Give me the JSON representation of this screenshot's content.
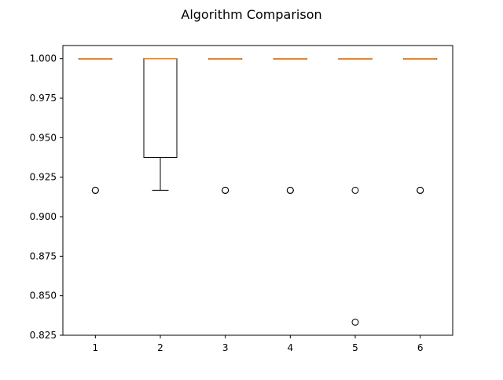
{
  "chart_data": {
    "type": "box",
    "title": "Algorithm Comparison",
    "xlabel": "",
    "ylabel": "",
    "ylim": [
      0.825,
      1.0083
    ],
    "yticks": [
      0.825,
      0.85,
      0.875,
      0.9,
      0.925,
      0.95,
      0.975,
      1.0
    ],
    "ytick_labels": [
      "0.825",
      "0.850",
      "0.875",
      "0.900",
      "0.925",
      "0.950",
      "0.975",
      "1.000"
    ],
    "categories": [
      "1",
      "2",
      "3",
      "4",
      "5",
      "6"
    ],
    "grid": false,
    "boxes": [
      {
        "category": "1",
        "whisker_low": 1.0,
        "q1": 1.0,
        "median": 1.0,
        "q3": 1.0,
        "whisker_high": 1.0,
        "outliers": [
          0.9167,
          0.9167
        ]
      },
      {
        "category": "2",
        "whisker_low": 0.9167,
        "q1": 0.9375,
        "median": 1.0,
        "q3": 1.0,
        "whisker_high": 1.0,
        "outliers": []
      },
      {
        "category": "3",
        "whisker_low": 1.0,
        "q1": 1.0,
        "median": 1.0,
        "q3": 1.0,
        "whisker_high": 1.0,
        "outliers": [
          0.9167,
          0.9167
        ]
      },
      {
        "category": "4",
        "whisker_low": 1.0,
        "q1": 1.0,
        "median": 1.0,
        "q3": 1.0,
        "whisker_high": 1.0,
        "outliers": [
          0.9167,
          0.9167
        ]
      },
      {
        "category": "5",
        "whisker_low": 1.0,
        "q1": 1.0,
        "median": 1.0,
        "q3": 1.0,
        "whisker_high": 1.0,
        "outliers": [
          0.9167,
          0.8333
        ]
      },
      {
        "category": "6",
        "whisker_low": 1.0,
        "q1": 1.0,
        "median": 1.0,
        "q3": 1.0,
        "whisker_high": 1.0,
        "outliers": [
          0.9167,
          0.9167
        ]
      }
    ],
    "colors": {
      "box": "#000000",
      "median": "#ff7f0e",
      "flier": "#000000",
      "background": "#ffffff"
    }
  }
}
